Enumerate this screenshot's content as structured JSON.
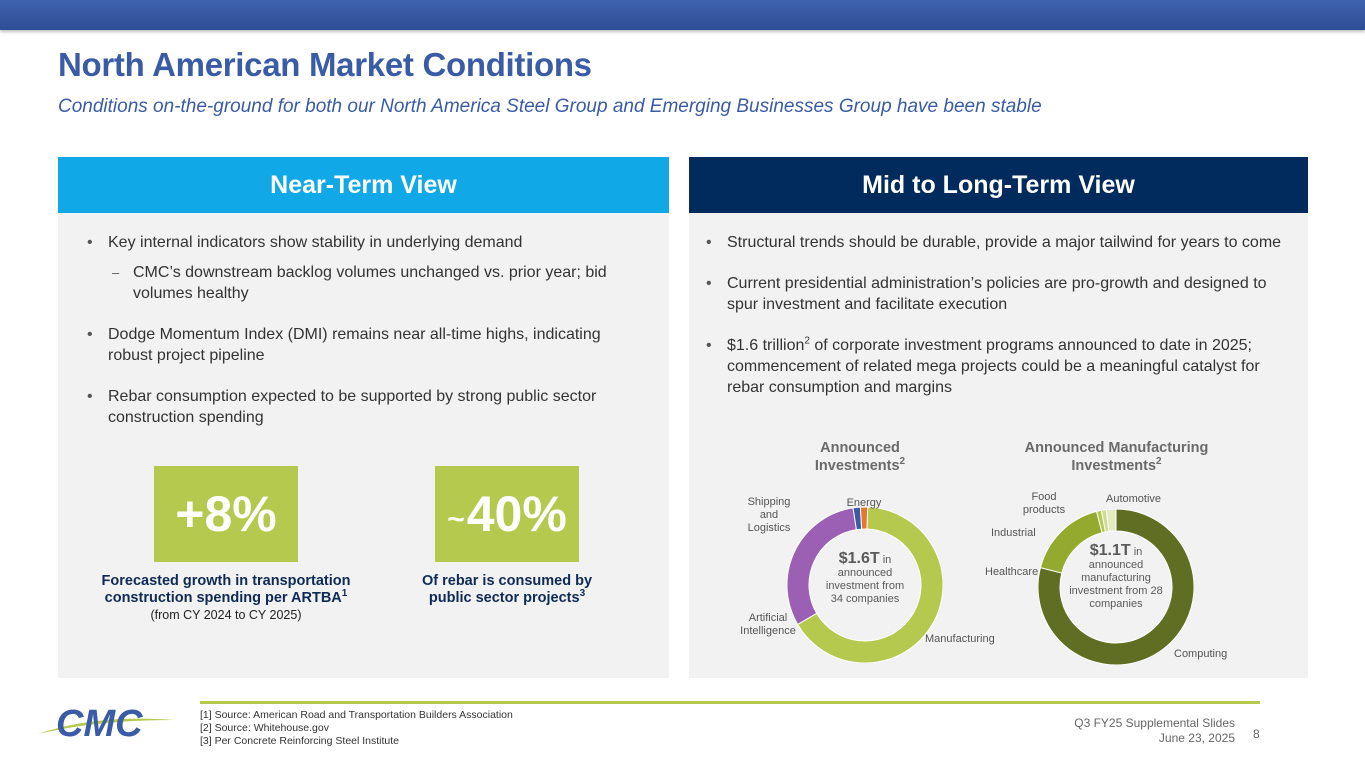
{
  "header": {
    "title": "North American Market Conditions",
    "subtitle": "Conditions on-the-ground for both our North America Steel Group and Emerging Businesses Group have been stable"
  },
  "near_term": {
    "heading": "Near-Term View",
    "bullets": [
      {
        "text": "Key internal indicators show stability in underlying demand"
      },
      {
        "text": "CMC’s downstream backlog volumes unchanged vs. prior year; bid volumes healthy"
      },
      {
        "text": "Dodge Momentum Index (DMI) remains near all-time highs, indicating robust project pipeline"
      },
      {
        "text": "Rebar consumption expected to be supported by strong public sector construction spending"
      }
    ],
    "stats": [
      {
        "value": "+8%",
        "caption": "Forecasted growth in transportation construction spending per ARTBA",
        "sup": "1",
        "note": "(from CY 2024 to CY 2025)"
      },
      {
        "prefix": "~",
        "value": "40%",
        "caption": "Of rebar is consumed by public sector projects",
        "sup": "3"
      }
    ]
  },
  "mid_long_term": {
    "heading": "Mid to Long-Term View",
    "bullets": [
      {
        "text": "Structural trends should be durable, provide a major tailwind for years to come"
      },
      {
        "text": "Current presidential administration’s policies are pro-growth and designed to spur investment and facilitate execution"
      },
      {
        "pre": "$1.6 trillion",
        "sup": "2",
        "post": " of corporate investment programs announced to date in 2025; commencement of related mega projects could be a meaningful catalyst for rebar consumption and margins"
      }
    ]
  },
  "chart_data": [
    {
      "type": "pie",
      "title": "Announced Investments",
      "title_sup": "2",
      "center_value": "$1.6T",
      "center_text": " in announced investment from 34 companies",
      "categories": [
        "Manufacturing",
        "Artificial Intelligence",
        "Shipping and Logistics",
        "Energy"
      ],
      "values": [
        66,
        31,
        1.5,
        1.5
      ],
      "colors": [
        "#b5c94f",
        "#9b5fb4",
        "#3a5ba6",
        "#e8762d"
      ]
    },
    {
      "type": "pie",
      "title": "Announced Manufacturing Investments",
      "title_sup": "2",
      "center_value": "$1.1T",
      "center_text": " in announced manufacturing investment from 28 companies",
      "categories": [
        "Computing",
        "Healthcare",
        "Industrial",
        "Food products",
        "Automotive"
      ],
      "values": [
        79,
        17,
        1,
        1,
        2
      ],
      "colors": [
        "#5f6e22",
        "#94aa2f",
        "#b5c94f",
        "#cfdc8e",
        "#e4ebbf"
      ]
    }
  ],
  "footer": {
    "notes": [
      "[1] Source: American Road and Transportation Builders Association",
      "[2] Source: Whitehouse.gov",
      "[3] Per Concrete Reinforcing Steel Institute"
    ],
    "deck": "Q3 FY25 Supplemental Slides",
    "date": "June 23, 2025",
    "page": "8",
    "logo_text": "CMC"
  }
}
